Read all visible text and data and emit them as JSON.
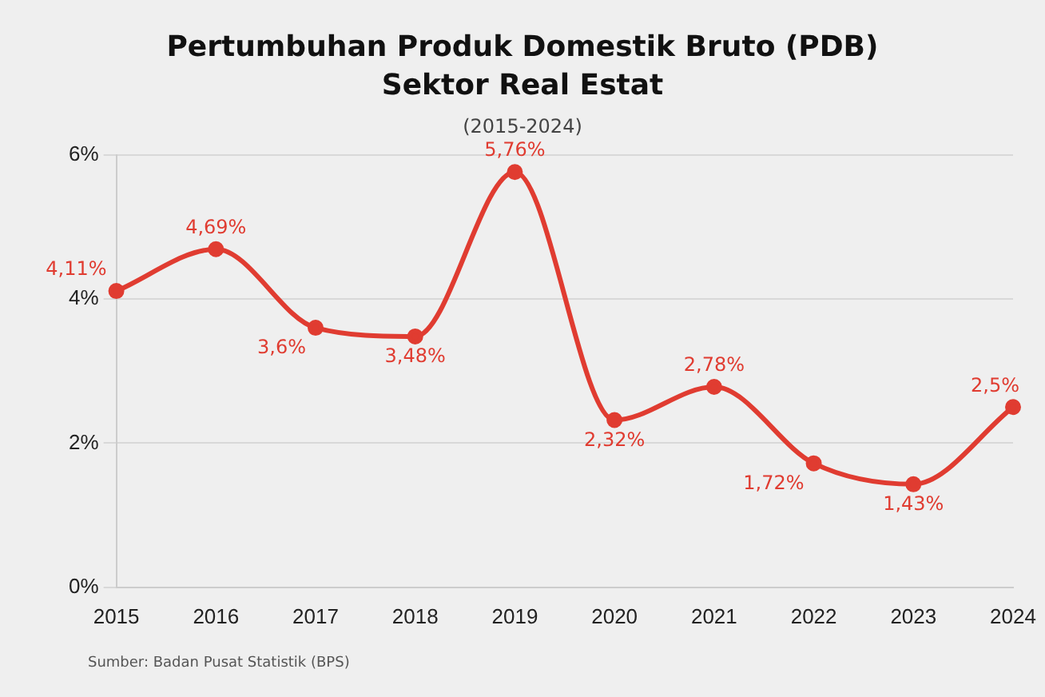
{
  "chart_data": {
    "type": "line",
    "title": "Pertumbuhan Produk Domestik Bruto (PDB)\nSektor Real Estat",
    "subtitle": "(2015-2024)",
    "categories": [
      "2015",
      "2016",
      "2017",
      "2018",
      "2019",
      "2020",
      "2021",
      "2022",
      "2023",
      "2024"
    ],
    "series": [
      {
        "color": "#e03c31",
        "values": [
          4.11,
          4.69,
          3.6,
          3.48,
          5.76,
          2.32,
          2.78,
          1.72,
          1.43,
          2.5
        ],
        "value_labels": [
          "4,11%",
          "4,69%",
          "3,6%",
          "3,48%",
          "5,76%",
          "2,32%",
          "2,78%",
          "1,72%",
          "1,43%",
          "2,5%"
        ]
      }
    ],
    "ylim": [
      0,
      6
    ],
    "yticks": [
      {
        "value": 0,
        "label": "0%"
      },
      {
        "value": 2,
        "label": "2%"
      },
      {
        "value": 4,
        "label": "4%"
      },
      {
        "value": 6,
        "label": "6%"
      }
    ],
    "grid": "y",
    "legend": false,
    "marker": "circle",
    "line_style": "solid",
    "annotations": [
      "Sumber: Badan Pusat Statistik (BPS)"
    ]
  }
}
